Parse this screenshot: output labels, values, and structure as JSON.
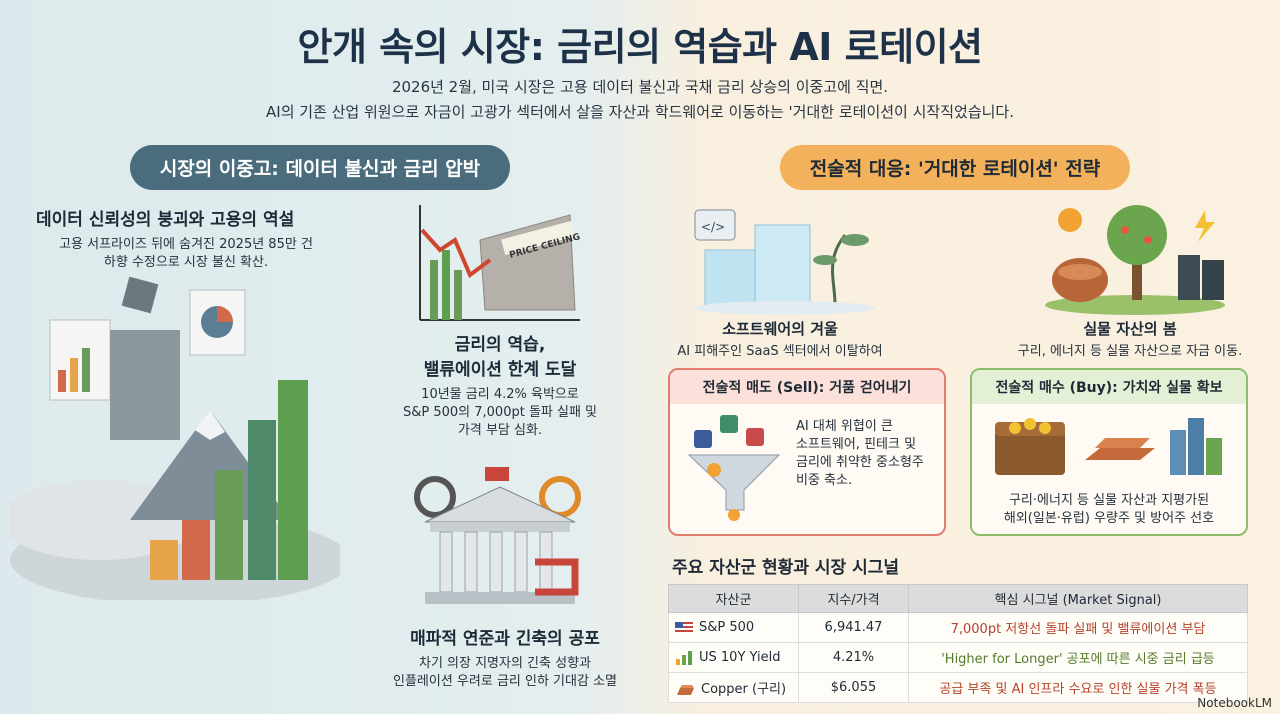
{
  "header": {
    "title": "안개 속의 시장: 금리의 역습과 AI 로테이션",
    "subtitle_1": "2026년 2월, 미국 시장은 고용 데이터 불신과 국채 금리 상승의 이중고에 직면.",
    "subtitle_2": "AI의 기존 산업 위원으로 자금이 고광가 섹터에서 살을 자산과 학드웨어로 이동하는 '거대한 로테이션이 시작직었습니다."
  },
  "left": {
    "section_label": "시장의 이중고: 데이터 불신과 금리 압박",
    "block1": {
      "title": "데이터 신뢰성의 붕괴와 고용의 역설",
      "line1": "고용 서프라이즈 뒤에 숨겨진 2025년 85만 건",
      "line2": "하향 수정으로 시장 불신 확산."
    },
    "block2": {
      "chart_label": "PRICE CEILING",
      "title1": "금리의 역습,",
      "title2": "밸류에이션 한계 도달",
      "line1": "10년물 금리 4.2% 육박으로",
      "line2": "S&P 500의 7,000pt 돌파 실패 및",
      "line3": "가격 부담 심화."
    },
    "block3": {
      "title": "매파적 연준과 긴축의 공포",
      "line1": "차기 의장 지명자의 긴축 성향과",
      "line2": "인플레이션 우려로 금리 인하 기대감 소멸"
    }
  },
  "right": {
    "section_label": "전술적 대응: '거대한 로테이션' 전략",
    "winter": {
      "title": "소프트웨어의 겨울",
      "line1": "AI 피해주인 SaaS 섹터에서 이탈하여"
    },
    "spring": {
      "title": "실물 자산의 봄",
      "line1": "구리, 에너지 등 실물 자산으로 자금 이동."
    },
    "sell": {
      "title": "전술적 매도 (Sell): 거품 걷어내기",
      "line1": "AI 대체 위협이 큰",
      "line2": "소프트웨어, 핀테크 및",
      "line3": "금리에 취약한 중소형주",
      "line4": "비중 축소."
    },
    "buy": {
      "title": "전술적 매수 (Buy): 가치와 실물 확보",
      "line1": "구리·에너지 등 실물 자산과 지평가된",
      "line2": "해외(일본·유럽) 우량주 및 방어주 선호"
    },
    "table": {
      "title": "주요 자산군 현황과 시장 시그널",
      "headers": [
        "자산군",
        "지수/가격",
        "핵심 시그널 (Market Signal)"
      ],
      "rows": [
        {
          "asset": "S&P 500",
          "value": "6,941.47",
          "signal": "7,000pt 저항선 돌파 실패 및 밸류에이션 부담"
        },
        {
          "asset": "US 10Y Yield",
          "value": "4.21%",
          "signal": "'Higher for Longer' 공포에 따른 시중 금리 급등"
        },
        {
          "asset": "Copper (구리)",
          "value": "$6.055",
          "signal": "공급 부족 및 AI 인프라 수요로 인한 실물 가격 폭등"
        }
      ]
    }
  },
  "brand": "NotebookLM",
  "colors": {
    "navy": "#1d3148",
    "teal_pill": "#4b6c7c",
    "orange_pill": "#f2b15a",
    "sell_red": "#e27d6d",
    "buy_green": "#8dbd6c"
  }
}
